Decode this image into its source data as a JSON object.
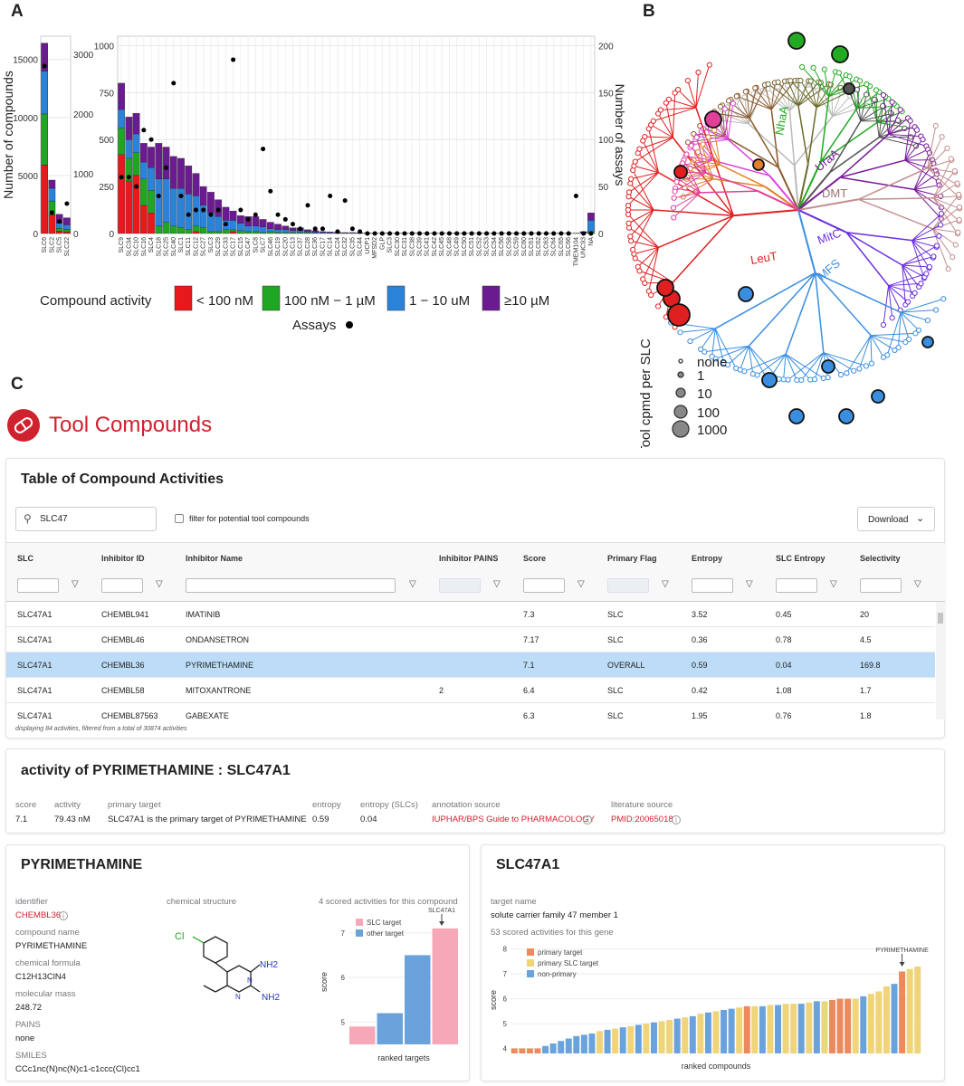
{
  "panel_labels": {
    "a": "A",
    "b": "B",
    "c": "C"
  },
  "chart_data": [
    {
      "type": "bar",
      "panel": "A-left",
      "categories": [
        "SLC6",
        "SLC2",
        "SLC5",
        "SLC22"
      ],
      "series": [
        {
          "name": "< 100 nM",
          "values": [
            5900,
            1600,
            200,
            150
          ]
        },
        {
          "name": "100 nM − 1 µM",
          "values": [
            4400,
            1200,
            250,
            200
          ]
        },
        {
          "name": "1 − 10 uM",
          "values": [
            3700,
            1100,
            450,
            400
          ]
        },
        {
          "name": "≥10 µM",
          "values": [
            2400,
            700,
            750,
            600
          ]
        }
      ],
      "assays": [
        2800,
        350,
        200,
        500
      ],
      "ylabel": "Number of compounds",
      "ylim": [
        0,
        17000
      ],
      "yticks": [
        "0",
        "5000",
        "10000",
        "15000"
      ],
      "y2ticks": [
        "0",
        "1000",
        "2000",
        "3000"
      ],
      "y2lim": [
        0,
        3300
      ]
    },
    {
      "type": "bar",
      "panel": "A-right",
      "categories": [
        "SLC9",
        "SLC34",
        "SLC10",
        "SLC16",
        "SLC4",
        "SLC18",
        "SLC25",
        "SLC40",
        "SLC1",
        "SLC11",
        "SLC12",
        "SLC27",
        "SLC3",
        "SLC29",
        "SLC33",
        "SLC17",
        "SLC15",
        "SLC47",
        "SLC8",
        "SLC7",
        "SLC46",
        "SLC19",
        "SLC20",
        "SLC13",
        "SLC37",
        "SLC28",
        "SLC36",
        "SLC17b",
        "SLC14",
        "SLC24",
        "SLC32",
        "SLC35",
        "SLC44",
        "UCP1",
        "MFSD2",
        "GLP",
        "SLC3b",
        "SLC30",
        "SLC31",
        "SLC38",
        "SLC39",
        "SLC41",
        "SLC42",
        "SLC45",
        "SLC48",
        "SLC49",
        "SLC50",
        "SLC51",
        "SLC52",
        "SLC53",
        "SLC54",
        "SLC56",
        "SLC58",
        "SLC59",
        "SLC60",
        "SLC61",
        "SLC62",
        "SLC63",
        "SLC64",
        "SLC65",
        "SLC66",
        "TMEM104",
        "UNC93",
        "NA"
      ],
      "series": [
        {
          "name": "< 100 nM",
          "values": [
            420,
            280,
            310,
            150,
            110,
            0,
            0,
            0,
            0,
            0,
            10,
            0,
            0,
            0,
            0,
            10,
            0,
            0,
            0,
            0,
            0,
            0,
            0,
            0,
            0,
            0,
            0,
            0,
            0,
            0,
            0,
            0,
            0,
            0,
            0,
            0,
            0,
            0,
            0,
            0,
            0,
            0,
            0,
            0,
            0,
            0,
            0,
            0,
            0,
            0,
            0,
            0,
            0,
            0,
            0,
            0,
            0,
            0,
            0,
            0,
            0,
            0,
            0,
            0
          ]
        },
        {
          "name": "100 nM − 1 µM",
          "values": [
            140,
            120,
            120,
            140,
            120,
            40,
            60,
            40,
            30,
            20,
            30,
            30,
            10,
            10,
            20,
            10,
            15,
            10,
            10,
            5,
            10,
            5,
            5,
            5,
            5,
            5,
            0,
            0,
            0,
            0,
            0,
            0,
            0,
            0,
            0,
            0,
            0,
            0,
            0,
            0,
            0,
            0,
            0,
            0,
            0,
            0,
            0,
            0,
            0,
            0,
            0,
            0,
            0,
            0,
            0,
            0,
            0,
            0,
            0,
            0,
            0,
            0,
            0,
            10
          ]
        },
        {
          "name": "1 − 10 uM",
          "values": [
            100,
            100,
            100,
            90,
            120,
            250,
            230,
            200,
            210,
            190,
            160,
            120,
            100,
            80,
            50,
            50,
            40,
            30,
            30,
            30,
            15,
            15,
            15,
            10,
            10,
            5,
            5,
            5,
            3,
            3,
            2,
            2,
            2,
            1,
            1,
            1,
            1,
            1,
            1,
            1,
            1,
            1,
            1,
            1,
            1,
            1,
            1,
            1,
            1,
            1,
            1,
            1,
            1,
            1,
            1,
            1,
            1,
            1,
            1,
            1,
            1,
            1,
            5,
            60
          ]
        },
        {
          "name": "≥10 µM",
          "values": [
            140,
            120,
            110,
            100,
            110,
            190,
            170,
            170,
            160,
            150,
            120,
            100,
            110,
            90,
            70,
            50,
            40,
            50,
            50,
            40,
            35,
            30,
            20,
            15,
            15,
            10,
            10,
            5,
            5,
            4,
            3,
            3,
            2,
            2,
            1,
            1,
            1,
            1,
            1,
            1,
            1,
            1,
            1,
            1,
            1,
            1,
            1,
            1,
            1,
            1,
            1,
            1,
            1,
            1,
            1,
            1,
            1,
            1,
            1,
            1,
            1,
            1,
            5,
            40
          ]
        }
      ],
      "assays": [
        60,
        60,
        50,
        110,
        100,
        40,
        70,
        160,
        40,
        20,
        25,
        25,
        20,
        25,
        10,
        185,
        25,
        15,
        20,
        90,
        45,
        20,
        15,
        10,
        5,
        30,
        5,
        5,
        40,
        2,
        35,
        5,
        2,
        0,
        0,
        0,
        0,
        0,
        0,
        0,
        0,
        0,
        0,
        0,
        0,
        0,
        0,
        0,
        0,
        0,
        0,
        0,
        0,
        0,
        0,
        0,
        0,
        0,
        0,
        0,
        0,
        40,
        0,
        0
      ],
      "ylim": [
        0,
        1050
      ],
      "yticks": [
        "0",
        "250",
        "500",
        "750",
        "1000"
      ],
      "y2lim": [
        0,
        210
      ],
      "y2ticks": [
        "0",
        "50",
        "100",
        "150",
        "200"
      ],
      "y2label": "Number of assays"
    }
  ],
  "legend_a": {
    "title": "Compound activity",
    "items": [
      "< 100 nM",
      "100 nM − 1 µM",
      "1 − 10 uM",
      "≥10 µM"
    ],
    "assays": "Assays",
    "colors": [
      "#e8181b",
      "#1fa623",
      "#2b83d9",
      "#6a1b8f"
    ]
  },
  "tree": {
    "clades": [
      "NhaA",
      "UraA",
      "DMT",
      "MitC",
      "MFS",
      "LeuT"
    ],
    "legend_title": "Tool cpmd per SLC",
    "sizes": [
      "none",
      "1",
      "10",
      "100",
      "1000"
    ]
  },
  "logo": {
    "title": "Tool Compounds"
  },
  "table_card": {
    "title": "Table of Compound Activities",
    "search_value": "SLC47",
    "filter_label": "filter for potential tool compounds",
    "download": "Download",
    "columns": [
      "SLC",
      "Inhibitor ID",
      "Inhibitor Name",
      "Inhibitor PAINS",
      "Score",
      "Primary Flag",
      "Entropy",
      "SLC Entropy",
      "Selectivity"
    ],
    "rows": [
      [
        "SLC47A1",
        "CHEMBL941",
        "IMATINIB",
        "",
        "7.3",
        "SLC",
        "3.52",
        "0.45",
        "20"
      ],
      [
        "SLC47A1",
        "CHEMBL46",
        "ONDANSETRON",
        "",
        "7.17",
        "SLC",
        "0.36",
        "0.78",
        "4.5"
      ],
      [
        "SLC47A1",
        "CHEMBL36",
        "PYRIMETHAMINE",
        "",
        "7.1",
        "OVERALL",
        "0.59",
        "0.04",
        "169.8"
      ],
      [
        "SLC47A1",
        "CHEMBL58",
        "MITOXANTRONE",
        "2",
        "6.4",
        "SLC",
        "0.42",
        "1.08",
        "1.7"
      ],
      [
        "SLC47A1",
        "CHEMBL87563",
        "GABEXATE",
        "",
        "6.3",
        "SLC",
        "1.95",
        "0.76",
        "1.8"
      ]
    ],
    "footer": "displaying 84 activities, filtered from a total of 30874 activities"
  },
  "activity_card": {
    "title": "activity of PYRIMETHAMINE : SLC47A1",
    "labels": [
      "score",
      "activity",
      "primary target",
      "entropy",
      "entropy (SLCs)",
      "annotation source",
      "literature source"
    ],
    "values": [
      "7.1",
      "79.43 nM",
      "SLC47A1 is the primary target of PYRIMETHAMINE",
      "0.59",
      "0.04",
      "IUPHAR/BPS Guide to PHARMACOLOGY",
      "PMID:20065018"
    ]
  },
  "compound_card": {
    "title": "PYRIMETHAMINE",
    "identifier_label": "identifier",
    "identifier": "CHEMBL36",
    "name_label": "compound name",
    "name": "PYRIMETHAMINE",
    "formula_label": "chemical formula",
    "formula": "C12H13ClN4",
    "mass_label": "molecular mass",
    "mass": "248.72",
    "pains_label": "PAINS",
    "pains": "none",
    "smiles_label": "SMILES",
    "smiles": "CCc1nc(N)nc(N)c1-c1ccc(Cl)cc1",
    "structure_label": "chemical structure",
    "struct_atoms": {
      "cl": "Cl",
      "nh2a": "NH2",
      "nh2b": "NH2",
      "n1": "N",
      "n2": "N"
    },
    "scored_label": "4 scored activities for this compound",
    "chart_legend": [
      "SLC target",
      "other target"
    ],
    "arrow_label": "SLC47A1",
    "xlabel": "ranked targets",
    "ylabel": "score"
  },
  "gene_card": {
    "title": "SLC47A1",
    "target_label": "target name",
    "target": "solute carrier family 47 member 1",
    "scored_label": "53 scored activities for this gene",
    "legend": [
      "primary target",
      "primary SLC target",
      "non-primary"
    ],
    "arrow_label": "PYRIMETHAMINE",
    "xlabel": "ranked compounds",
    "ylabel": "score"
  },
  "compound_bars": {
    "type": "bar",
    "values": [
      4.9,
      5.2,
      6.5,
      7.1
    ],
    "colors": [
      "pink",
      "blue",
      "blue",
      "pink"
    ],
    "yticks": [
      "5",
      "6",
      "7"
    ],
    "ylim": [
      4.5,
      7.3
    ]
  },
  "gene_bars": {
    "type": "bar",
    "values": [
      4.0,
      4.0,
      4.0,
      4.0,
      4.1,
      4.2,
      4.3,
      4.4,
      4.5,
      4.55,
      4.6,
      4.7,
      4.75,
      4.8,
      4.85,
      4.9,
      4.95,
      5.0,
      5.05,
      5.1,
      5.15,
      5.2,
      5.25,
      5.3,
      5.4,
      5.45,
      5.5,
      5.55,
      5.6,
      5.65,
      5.7,
      5.7,
      5.7,
      5.75,
      5.75,
      5.8,
      5.8,
      5.8,
      5.85,
      5.9,
      5.9,
      5.95,
      6.0,
      6.0,
      6.0,
      6.1,
      6.2,
      6.3,
      6.5,
      6.6,
      7.1,
      7.2,
      7.3
    ],
    "kinds": [
      "o",
      "o",
      "o",
      "o",
      "b",
      "b",
      "b",
      "b",
      "b",
      "b",
      "b",
      "y",
      "b",
      "y",
      "b",
      "y",
      "b",
      "y",
      "b",
      "y",
      "y",
      "b",
      "y",
      "b",
      "y",
      "b",
      "y",
      "b",
      "b",
      "y",
      "o",
      "y",
      "b",
      "y",
      "b",
      "y",
      "y",
      "b",
      "y",
      "b",
      "y",
      "o",
      "o",
      "o",
      "y",
      "b",
      "y",
      "y",
      "y",
      "b",
      "o",
      "y",
      "y"
    ],
    "yticks": [
      "4",
      "5",
      "6",
      "7",
      "8"
    ],
    "ylim": [
      3.8,
      8.1
    ]
  }
}
